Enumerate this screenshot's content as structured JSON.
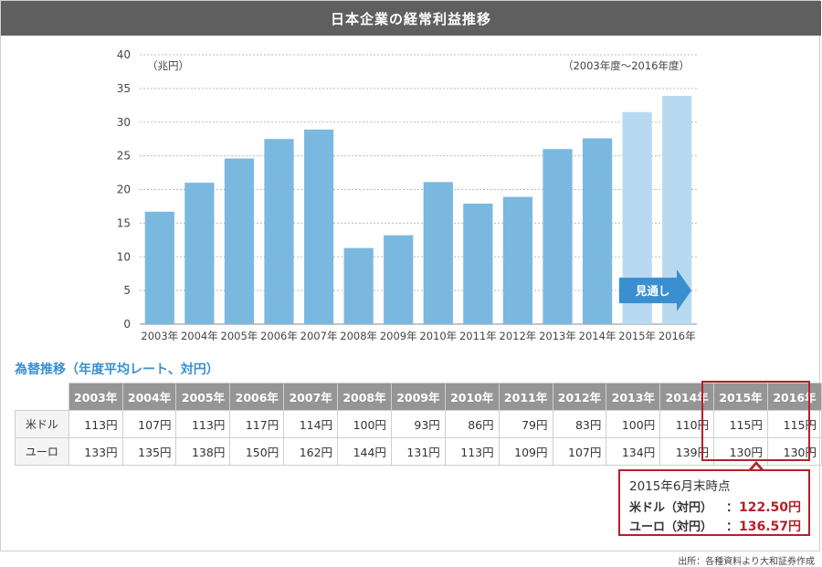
{
  "header": {
    "title": "日本企業の経常利益推移"
  },
  "chart_data": {
    "type": "bar",
    "unit_label": "（兆円）",
    "period_label": "（2003年度～2016年度）",
    "categories": [
      "2003年",
      "2004年",
      "2005年",
      "2006年",
      "2007年",
      "2008年",
      "2009年",
      "2010年",
      "2011年",
      "2012年",
      "2013年",
      "2014年",
      "2015年",
      "2016年"
    ],
    "values": [
      16.7,
      21.0,
      24.6,
      27.5,
      28.9,
      11.3,
      13.2,
      21.1,
      17.9,
      18.9,
      26.0,
      27.6,
      31.5,
      33.9
    ],
    "forecast_from_index": 12,
    "ylim": [
      0,
      40
    ],
    "yticks": [
      0,
      5,
      10,
      15,
      20,
      25,
      30,
      35,
      40
    ],
    "grid": true,
    "forecast_label": "見通し",
    "colors": {
      "actual": "#7bb8e0",
      "forecast": "#b8daf0",
      "arrow": "#3a8fd0"
    }
  },
  "rates": {
    "title": "為替推移（年度平均レート、対円）",
    "years": [
      "2003年",
      "2004年",
      "2005年",
      "2006年",
      "2007年",
      "2008年",
      "2009年",
      "2010年",
      "2011年",
      "2012年",
      "2013年",
      "2014年",
      "2015年",
      "2016年"
    ],
    "rows": [
      {
        "label": "米ドル",
        "values": [
          "113円",
          "107円",
          "113円",
          "117円",
          "114円",
          "100円",
          "93円",
          "86円",
          "79円",
          "83円",
          "100円",
          "110円",
          "115円",
          "115円"
        ]
      },
      {
        "label": "ユーロ",
        "values": [
          "133円",
          "135円",
          "138円",
          "150円",
          "162円",
          "144円",
          "131円",
          "113円",
          "109円",
          "107円",
          "134円",
          "139円",
          "130円",
          "130円"
        ]
      }
    ]
  },
  "callout": {
    "heading": "2015年6月末時点",
    "usd_label": "米ドル（対円）",
    "usd_value": "122.50円",
    "eur_label": "ユーロ（対円）",
    "eur_value": "136.57円",
    "colon": "："
  },
  "source": "出所：各種資料より大和証券作成"
}
